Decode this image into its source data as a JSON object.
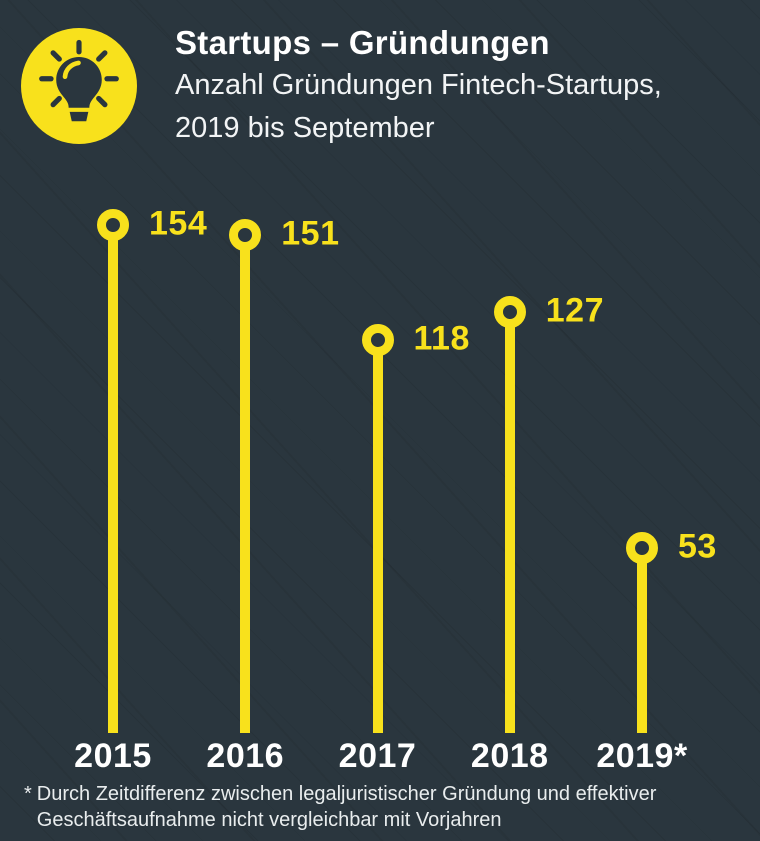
{
  "header": {
    "icon": "lightbulb-icon",
    "title": "Startups – Gründungen",
    "subtitle_line1": "Anzahl Gründungen Fintech-Startups,",
    "subtitle_line2": "2019 bis September"
  },
  "chart_data": {
    "type": "bar",
    "style": "lollipop",
    "categories": [
      "2015",
      "2016",
      "2017",
      "2018",
      "2019*"
    ],
    "values": [
      154,
      151,
      118,
      127,
      53
    ],
    "title": "Startups – Gründungen",
    "subtitle": "Anzahl Gründungen Fintech-Startups, 2019 bis September",
    "xlabel": "",
    "ylabel": "",
    "ylim": [
      0,
      160
    ],
    "grid": false,
    "legend": false,
    "accent_color": "#f8e11c",
    "value_label_color": "#f8e11c",
    "axis_label_color": "#ffffff",
    "background_color": "#2a363e"
  },
  "footnote": {
    "marker": "*",
    "line1": "Durch Zeitdifferenz zwischen legaljuristischer Gründung und effektiver",
    "line2": "Geschäftsaufnahme nicht vergleichbar mit Vorjahren"
  },
  "colors": {
    "background": "#2a363e",
    "accent": "#f8e11c",
    "title": "#ffffff",
    "subtitle": "#f2f4f5",
    "footnote": "#e9edee"
  }
}
